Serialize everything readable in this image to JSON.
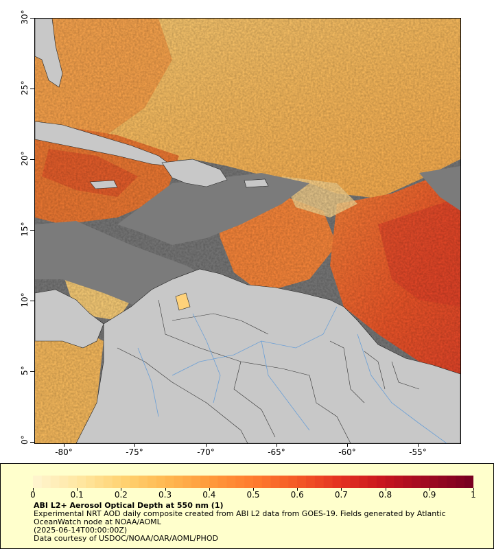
{
  "map": {
    "lat_labels": [
      "30°",
      "25°",
      "20°",
      "15°",
      "10°",
      "5°",
      "0°"
    ],
    "lon_labels": [
      "-80°",
      "-75°",
      "-70°",
      "-65°",
      "-60°",
      "-55°"
    ],
    "extent": {
      "lon_min": -82,
      "lon_max": -52,
      "lat_min": 0,
      "lat_max": 30
    },
    "colors": {
      "no_data": "#7b7b7b",
      "land": "#c8c8c8",
      "border": "#222222",
      "river": "#6a9fd6"
    }
  },
  "legend": {
    "title": "ABI L2+ Aerosol Optical Depth at 550 nm (1)",
    "line1": "Experimental NRT AOD daily composite created from ABI L2 data from GOES-19. Fields generated by Atlantic OceanWatch node at NOAA/AOML",
    "line2": "(2025-06-14T00:00:00Z)",
    "line3": "Data courtesy of USDOC/NOAA/OAR/AOML/PHOD",
    "scale_labels": [
      "0",
      "0.1",
      "0.2",
      "0.3",
      "0.4",
      "0.5",
      "0.6",
      "0.7",
      "0.8",
      "0.9",
      "1"
    ],
    "scale_range": [
      0,
      1
    ],
    "scale_colors": [
      "#fff4cc",
      "#ffe6a0",
      "#ffd270",
      "#ffb850",
      "#ff9a3c",
      "#ff7c2e",
      "#f45a26",
      "#e43220",
      "#c8161e",
      "#a00a20",
      "#7a0020"
    ]
  }
}
